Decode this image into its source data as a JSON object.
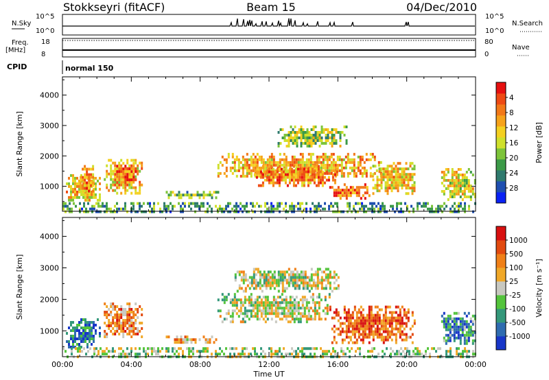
{
  "header": {
    "station": "Stokkseyri (fitACF)",
    "beam": "Beam 15",
    "date": "04/Dec/2010"
  },
  "side_labels": {
    "nsky": "N.Sky",
    "nsearch": "N.Search",
    "freq": "Freq.",
    "mhz": "[MHz]",
    "nave": "Nave",
    "cpid": "CPID"
  },
  "strip_ticks": {
    "noise_left_top": "10^5",
    "noise_left_bottom": "10^0",
    "noise_right_top": "10^5",
    "noise_right_bottom": "10^0",
    "freq_top": "18",
    "freq_bottom": "8",
    "nave_top": "80",
    "nave_bottom": "0"
  },
  "cpid_text": "normal 150",
  "chart_data": [
    {
      "type": "heatmap",
      "name": "power",
      "ylabel": "Slant Range [km]",
      "xlabel": "Time UT",
      "x_ticks": [
        "00:00",
        "04:00",
        "08:00",
        "12:00",
        "16:00",
        "20:00",
        "00:00"
      ],
      "y_ticks": [
        1000,
        2000,
        3000,
        4000
      ],
      "ylim": [
        180,
        4600
      ],
      "xlim_hours": [
        0,
        24
      ],
      "colorbar": {
        "label": "Power [dB]",
        "ticks": [
          "4",
          "8",
          "12",
          "16",
          "20",
          "24",
          "28"
        ],
        "colors": [
          "#0a22f5",
          "#1f4fb0",
          "#2f7a6e",
          "#3c9a48",
          "#7dc43a",
          "#cfe02c",
          "#f4d020",
          "#f6a21a",
          "#f27818",
          "#ee4a14",
          "#e61010"
        ]
      },
      "patches": [
        {
          "t0": 0.2,
          "t1": 2.2,
          "r0": 500,
          "r1": 1400,
          "level": 0.6
        },
        {
          "t0": 1.0,
          "t1": 1.8,
          "r0": 800,
          "r1": 1700,
          "level": 0.75
        },
        {
          "t0": 2.4,
          "t1": 4.6,
          "r0": 800,
          "r1": 1900,
          "level": 0.62
        },
        {
          "t0": 3.0,
          "t1": 4.3,
          "r0": 1100,
          "r1": 1800,
          "level": 0.78
        },
        {
          "t0": 9.0,
          "t1": 18.5,
          "r0": 1300,
          "r1": 2100,
          "level": 0.66
        },
        {
          "t0": 11.0,
          "t1": 16.0,
          "r0": 1000,
          "r1": 1700,
          "level": 0.74
        },
        {
          "t0": 15.5,
          "t1": 17.8,
          "r0": 600,
          "r1": 1100,
          "level": 0.82
        },
        {
          "t0": 12.5,
          "t1": 16.5,
          "r0": 2300,
          "r1": 3000,
          "level": 0.45
        },
        {
          "t0": 18.0,
          "t1": 20.5,
          "r0": 800,
          "r1": 1800,
          "level": 0.6
        },
        {
          "t0": 22.0,
          "t1": 24.0,
          "r0": 600,
          "r1": 1600,
          "level": 0.55
        },
        {
          "t0": 6.0,
          "t1": 9.0,
          "r0": 650,
          "r1": 850,
          "level": 0.4
        },
        {
          "t0": 0.0,
          "t1": 24.0,
          "r0": 200,
          "r1": 480,
          "level": 0.3
        }
      ]
    },
    {
      "type": "heatmap",
      "name": "velocity",
      "ylabel": "Slant Range [km]",
      "xlabel": "Time UT",
      "x_ticks": [
        "00:00",
        "04:00",
        "08:00",
        "12:00",
        "16:00",
        "20:00",
        "00:00"
      ],
      "y_ticks": [
        1000,
        2000,
        3000,
        4000
      ],
      "ylim": [
        180,
        4600
      ],
      "xlim_hours": [
        0,
        24
      ],
      "colorbar": {
        "label": "Velocity [m s⁻¹]",
        "ticks": [
          "1000",
          "500",
          "100",
          "25",
          "-25",
          "-100",
          "-500",
          "-1000"
        ],
        "colors": [
          "#1836c8",
          "#2f6cb0",
          "#34987a",
          "#54c43c",
          "#c8c8c0",
          "#f0a828",
          "#f08018",
          "#e24a10",
          "#d81010"
        ]
      },
      "patches": [
        {
          "t0": 0.2,
          "t1": 2.2,
          "r0": 500,
          "r1": 1400,
          "level": 0.2
        },
        {
          "t0": 2.4,
          "t1": 4.6,
          "r0": 800,
          "r1": 1900,
          "level": 0.7
        },
        {
          "t0": 9.0,
          "t1": 15.5,
          "r0": 1300,
          "r1": 2200,
          "level": 0.5
        },
        {
          "t0": 10.0,
          "t1": 16.0,
          "r0": 2300,
          "r1": 3000,
          "level": 0.5
        },
        {
          "t0": 15.5,
          "t1": 20.5,
          "r0": 600,
          "r1": 1800,
          "level": 0.78
        },
        {
          "t0": 22.0,
          "t1": 24.0,
          "r0": 600,
          "r1": 1600,
          "level": 0.25
        },
        {
          "t0": 6.0,
          "t1": 9.0,
          "r0": 650,
          "r1": 850,
          "level": 0.65
        },
        {
          "t0": 0.0,
          "t1": 24.0,
          "r0": 200,
          "r1": 480,
          "level": 0.45
        }
      ]
    }
  ]
}
